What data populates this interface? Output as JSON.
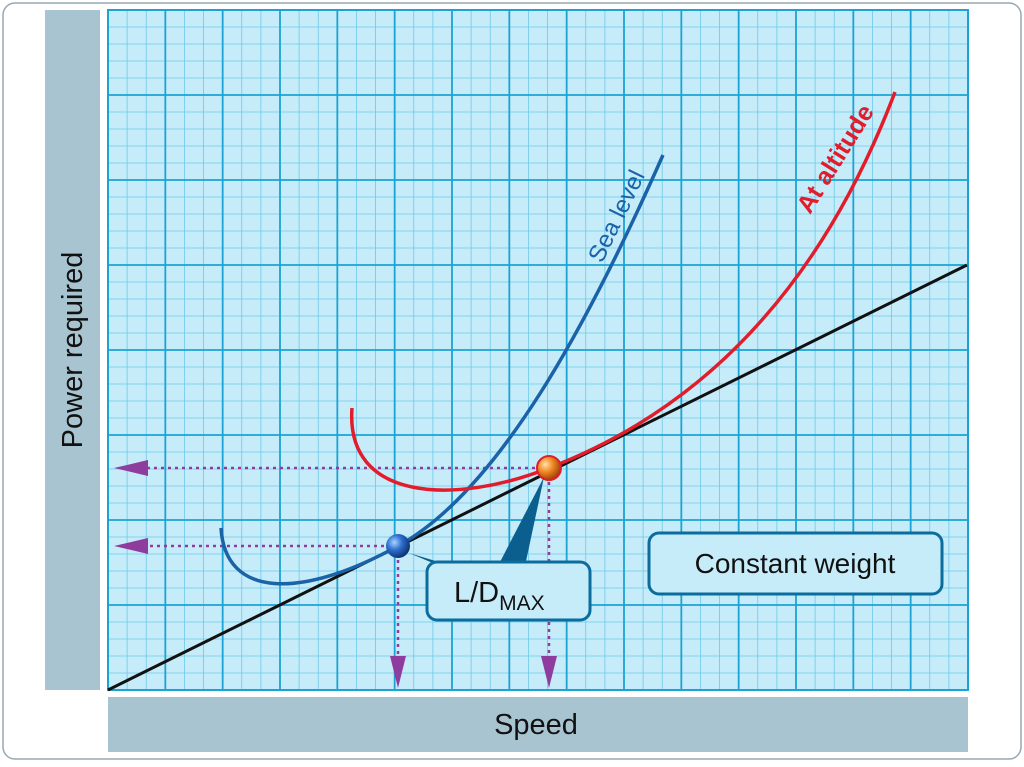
{
  "axes": {
    "y_label": "Power required",
    "x_label": "Speed"
  },
  "curves": {
    "sea_level": {
      "label": "Sea level"
    },
    "at_altitude": {
      "label": "At altitude"
    }
  },
  "annotations": {
    "ld_main": "L/D",
    "ld_sub": "MAX",
    "constant_weight": "Constant weight"
  },
  "colors": {
    "grid_fill": "#c6ecfa",
    "grid_line": "#1aa3d4",
    "axis_bar": "#a9c4d1",
    "sea_level": "#1a63a8",
    "at_altitude": "#e21d2b",
    "tangent": "#111111",
    "arrow": "#8e3c9e",
    "callout_fill": "#c6ecfa",
    "callout_border": "#0b6c9e",
    "callout_pointer": "#0b5f8f"
  }
}
